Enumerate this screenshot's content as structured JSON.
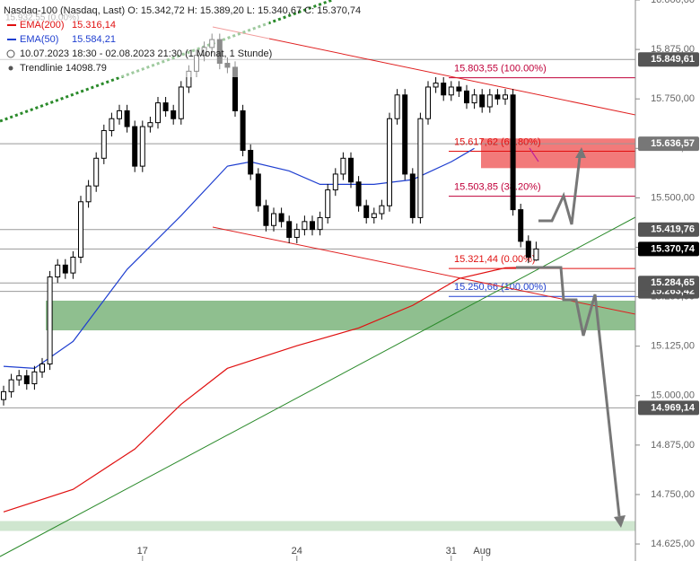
{
  "chart_data": {
    "type": "candlestick",
    "legend_lines": [
      "Nasdaq-100 (Nasdaq, Last)   O: 15.342,72   H: 15.389,20   L: 15.340,67   C: 15.370,74",
      "10.07.2023 18:30 - 02.08.2023 21:30   (1 Monat, 1 Stunde)",
      "Trendlinie  14098.79"
    ],
    "faded_label": "15.932,55 (0.00%)",
    "categories": [
      null,
      null,
      null,
      null,
      null,
      null,
      null,
      null,
      null,
      null,
      null,
      null,
      null,
      null,
      null,
      null,
      null,
      null,
      "17",
      null,
      null,
      null,
      null,
      null,
      null,
      null,
      null,
      null,
      null,
      null,
      null,
      null,
      null,
      null,
      null,
      null,
      null,
      null,
      "24",
      null,
      null,
      null,
      null,
      null,
      null,
      null,
      null,
      null,
      null,
      null,
      null,
      null,
      null,
      null,
      null,
      null,
      null,
      null,
      "31",
      null,
      null,
      null,
      "Aug",
      null,
      null,
      null,
      null,
      null,
      null,
      null
    ],
    "open": [
      14990,
      15010,
      15040,
      15050,
      15030,
      15060,
      15080,
      15300,
      15330,
      15310,
      15350,
      15490,
      15530,
      15600,
      15670,
      15700,
      15720,
      15680,
      15580,
      15680,
      15690,
      15740,
      15720,
      15700,
      15780,
      15820,
      15860,
      15880,
      15900,
      15840,
      15830,
      15720,
      15620,
      15560,
      15480,
      15430,
      15460,
      15440,
      15400,
      15420,
      15440,
      15420,
      15450,
      15520,
      15560,
      15600,
      15540,
      15480,
      15450,
      15460,
      15480,
      15700,
      15760,
      15560,
      15450,
      15700,
      15780,
      15790,
      15760,
      15780,
      15770,
      15740,
      15760,
      15730,
      15760,
      15750,
      15760,
      15470,
      15390,
      15342.72
    ],
    "high": [
      15025,
      15055,
      15065,
      15065,
      15075,
      15095,
      15315,
      15345,
      15345,
      15365,
      15505,
      15545,
      15615,
      15685,
      15715,
      15735,
      15735,
      15695,
      15695,
      15705,
      15755,
      15755,
      15735,
      15795,
      15835,
      15875,
      15895,
      15915,
      15915,
      15855,
      15845,
      15735,
      15635,
      15575,
      15495,
      15475,
      15475,
      15455,
      15435,
      15455,
      15455,
      15465,
      15535,
      15575,
      15615,
      15615,
      15555,
      15495,
      15475,
      15495,
      15715,
      15775,
      15775,
      15575,
      15715,
      15795,
      15805,
      15805,
      15795,
      15795,
      15785,
      15775,
      15775,
      15775,
      15775,
      15775,
      15775,
      15485,
      15405,
      15389.2
    ],
    "low": [
      14975,
      14995,
      15025,
      15015,
      15015,
      15045,
      15065,
      15285,
      15295,
      15295,
      15335,
      15475,
      15515,
      15585,
      15655,
      15685,
      15665,
      15565,
      15565,
      15665,
      15675,
      15705,
      15685,
      15685,
      15765,
      15805,
      15845,
      15865,
      15825,
      15815,
      15705,
      15605,
      15545,
      15465,
      15415,
      15415,
      15425,
      15385,
      15385,
      15405,
      15405,
      15405,
      15435,
      15505,
      15545,
      15525,
      15465,
      15435,
      15435,
      15445,
      15465,
      15685,
      15545,
      15435,
      15435,
      15685,
      15765,
      15745,
      15745,
      15755,
      15725,
      15725,
      15715,
      15715,
      15735,
      15735,
      15455,
      15375,
      15335,
      15340.67
    ],
    "close": [
      15010,
      15040,
      15050,
      15030,
      15060,
      15080,
      15300,
      15330,
      15310,
      15350,
      15490,
      15530,
      15600,
      15670,
      15700,
      15720,
      15680,
      15580,
      15680,
      15690,
      15740,
      15720,
      15700,
      15780,
      15820,
      15860,
      15880,
      15900,
      15840,
      15830,
      15720,
      15620,
      15560,
      15480,
      15430,
      15460,
      15440,
      15400,
      15420,
      15440,
      15420,
      15450,
      15520,
      15560,
      15600,
      15540,
      15480,
      15450,
      15460,
      15480,
      15700,
      15760,
      15560,
      15450,
      15700,
      15780,
      15790,
      15760,
      15780,
      15770,
      15740,
      15760,
      15730,
      15760,
      15750,
      15760,
      15470,
      15390,
      15350,
      15370.74
    ],
    "series": [
      {
        "name": "EMA(200)",
        "value_label": "15.316,14",
        "color": "#e01010",
        "x": [
          0,
          9,
          17,
          23,
          29,
          38,
          46,
          53,
          59,
          65,
          69
        ],
        "values": [
          14706,
          14763,
          14865,
          14978,
          15069,
          15126,
          15171,
          15228,
          15296,
          15323,
          15325
        ]
      },
      {
        "name": "EMA(50)",
        "value_label": "15.584,21",
        "color": "#1f3fd0",
        "x": [
          0,
          4,
          9,
          16,
          23,
          29,
          32,
          37,
          41,
          48,
          53,
          58,
          61
        ],
        "values": [
          15074,
          15069,
          15137,
          15319,
          15455,
          15580,
          15591,
          15568,
          15534,
          15534,
          15546,
          15591,
          15625
        ]
      }
    ],
    "fib_levels": [
      {
        "value": 15803.55,
        "label": "15.803,55 (100.00%)",
        "color": "#c0003a"
      },
      {
        "value": 15617.62,
        "label": "15.617,62 (61.80%)",
        "color": "#e01010"
      },
      {
        "value": 15503.85,
        "label": "15.503,85 (38.20%)",
        "color": "#c0003a"
      },
      {
        "value": 15321.44,
        "label": "15.321,44 (0.00%)",
        "color": "#e01010"
      },
      {
        "value": 15250.66,
        "label": "15.250,66 (100.00%)",
        "color": "#1f3fd0"
      }
    ],
    "price_tags": [
      {
        "value": 15849.61,
        "label": "15.849,61",
        "color": "#555555"
      },
      {
        "value": 15636.57,
        "label": "15.636,57",
        "color": "#777777"
      },
      {
        "value": 15419.76,
        "label": "15.419,76",
        "color": "#555555"
      },
      {
        "value": 15370.74,
        "label": "15.370,74",
        "color": "#000000"
      },
      {
        "value": 15263.42,
        "label": "15.263,42",
        "color": "#555555"
      },
      {
        "value": 15284.65,
        "label": "15.284,65",
        "color": "#555555"
      },
      {
        "value": 14969.14,
        "label": "14.969,14",
        "color": "#555555"
      }
    ],
    "zones": [
      {
        "low": 15165,
        "high": 15240,
        "color": "#8fbf8f"
      },
      {
        "low": 15575,
        "high": 15650,
        "color": "#f27a7a"
      },
      {
        "low": 14658,
        "high": 14683,
        "color": "#cfe6cf"
      }
    ],
    "ylim": [
      14582,
      16000
    ],
    "yticks": [
      {
        "value": 16000,
        "label": "16.000,00"
      },
      {
        "value": 15875,
        "label": "15.875,00"
      },
      {
        "value": 15750,
        "label": "15.750,00"
      },
      {
        "value": 15625,
        "label": "15.625,00"
      },
      {
        "value": 15500,
        "label": "15.500,00"
      },
      {
        "value": 15375,
        "label": "15.375,00"
      },
      {
        "value": 15250,
        "label": "15.250,00"
      },
      {
        "value": 15125,
        "label": "15.125,00"
      },
      {
        "value": 15000,
        "label": "15.000,00"
      },
      {
        "value": 14875,
        "label": "14.875,00"
      },
      {
        "value": 14750,
        "label": "14.750,00"
      },
      {
        "value": 14625,
        "label": "14.625,00"
      }
    ]
  }
}
